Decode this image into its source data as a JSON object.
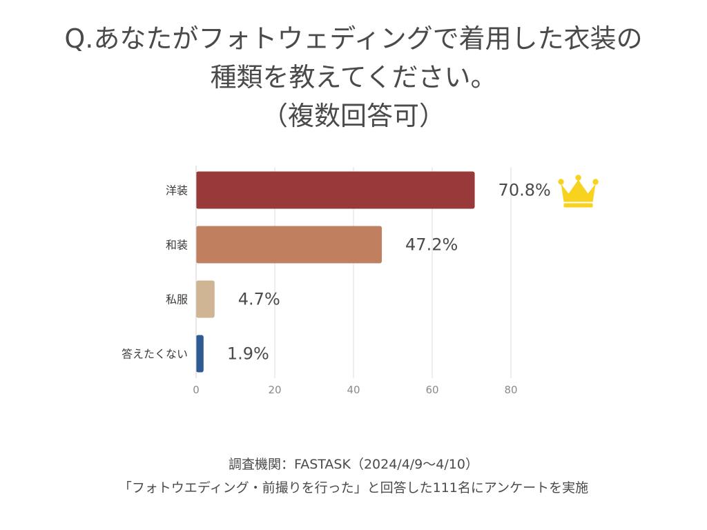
{
  "title_lines": [
    "Q.あなたがフォトウェディングで着用した衣装の",
    "種類を教えてください。",
    "（複数回答可）"
  ],
  "chart_data": {
    "type": "bar",
    "orientation": "horizontal",
    "categories": [
      "洋装",
      "和装",
      "私服",
      "答えたくない"
    ],
    "values": [
      70.8,
      47.2,
      4.7,
      1.9
    ],
    "data_labels": [
      "70.8%",
      "47.2%",
      "4.7%",
      "1.9%"
    ],
    "bar_colors": [
      "#983a3a",
      "#c08060",
      "#cfb594",
      "#2e5b94"
    ],
    "xlim": [
      0,
      80
    ],
    "xticks": [
      0,
      20,
      40,
      60,
      80
    ],
    "grid": true,
    "highlight": {
      "category": "洋装",
      "icon": "crown-icon",
      "color": "#f7d21e"
    }
  },
  "footer": {
    "source": "調査機関：FASTASK（2024/4/9〜4/10）",
    "note": "「フォトウエディング・前撮りを行った」と回答した111名にアンケートを実施"
  }
}
